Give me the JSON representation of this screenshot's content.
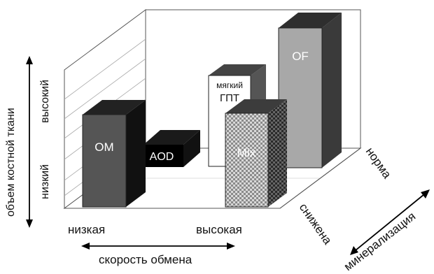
{
  "diagram": {
    "axes": {
      "y_title": "объем костной ткани",
      "y_high": "высокий",
      "y_low": "низкий",
      "x_low": "низкая",
      "x_high": "высокая",
      "x_title": "скорость обмена",
      "z_normal": "норма",
      "z_reduced": "снижена",
      "z_title": "минерализация"
    },
    "bars": [
      {
        "label": "OM",
        "label2": "",
        "color": "#555555"
      },
      {
        "label": "AOD",
        "label2": "",
        "color": "#000000"
      },
      {
        "label": "мягкий",
        "label2": "ГПТ",
        "color": "#ffffff"
      },
      {
        "label": "Mix",
        "label2": "",
        "color": "checker"
      },
      {
        "label": "OF",
        "label2": "",
        "color": "#a8a8a8"
      }
    ]
  }
}
